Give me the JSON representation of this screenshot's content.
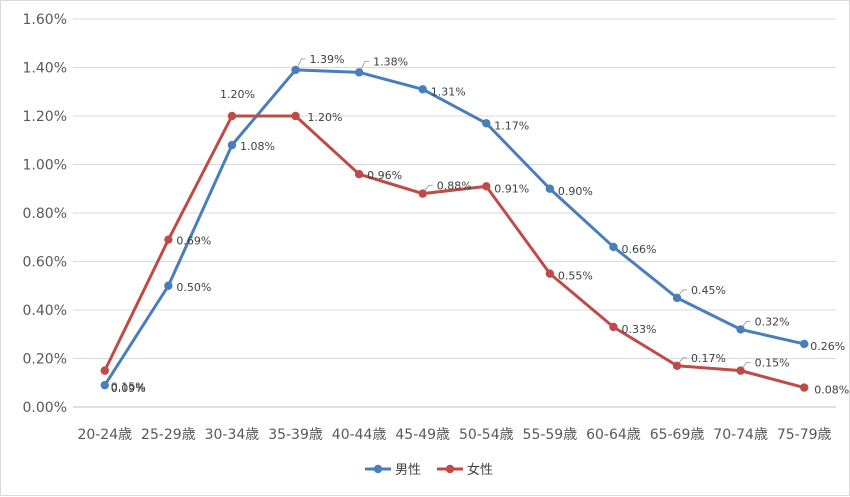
{
  "chart_data": {
    "type": "line",
    "categories": [
      "20-24歳",
      "25-29歳",
      "30-34歳",
      "35-39歳",
      "40-44歳",
      "45-49歳",
      "50-54歳",
      "55-59歳",
      "60-64歳",
      "65-69歳",
      "70-74歳",
      "75-79歳"
    ],
    "series": [
      {
        "name": "男性",
        "color": "#4A7EBB",
        "values": [
          0.09,
          0.5,
          1.08,
          1.39,
          1.38,
          1.31,
          1.17,
          0.9,
          0.66,
          0.45,
          0.32,
          0.26
        ],
        "labels": [
          "0.09%",
          "0.50%",
          "1.08%",
          "1.39%",
          "1.38%",
          "1.31%",
          "1.17%",
          "0.90%",
          "0.66%",
          "0.45%",
          "0.32%",
          "0.26%"
        ]
      },
      {
        "name": "女性",
        "color": "#BE4B48",
        "values": [
          0.15,
          0.69,
          1.2,
          1.2,
          0.96,
          0.88,
          0.91,
          0.55,
          0.33,
          0.17,
          0.15,
          0.08
        ],
        "labels": [
          "0.15%",
          "0.69%",
          "1.20%",
          "1.20%",
          "0.96%",
          "0.88%",
          "0.91%",
          "0.55%",
          "0.33%",
          "0.17%",
          "0.15%",
          "0.08%"
        ]
      }
    ],
    "y_ticks": [
      "0.00%",
      "0.20%",
      "0.40%",
      "0.60%",
      "0.80%",
      "1.00%",
      "1.20%",
      "1.40%",
      "1.60%"
    ],
    "ylim": [
      0,
      1.6
    ],
    "grid": true,
    "legend_position": "bottom-center",
    "gridline_color": "#d9d9d9",
    "axis_color": "#bfbfbf"
  }
}
